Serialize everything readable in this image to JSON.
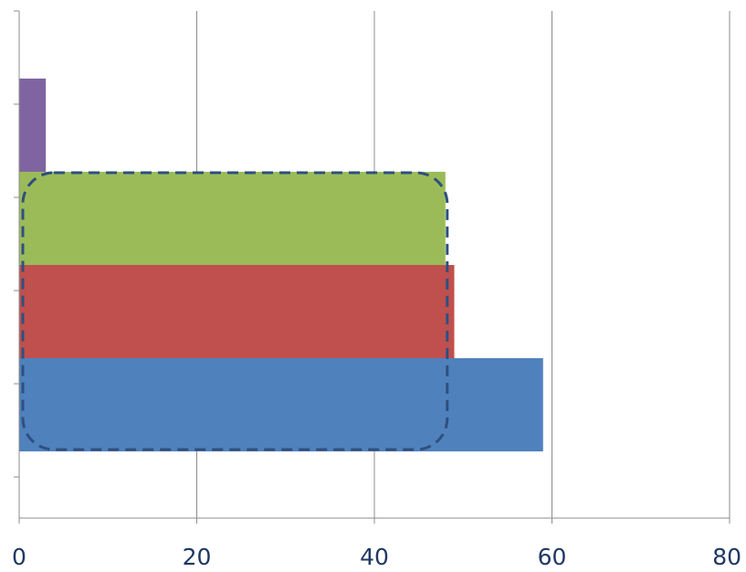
{
  "chart_data": {
    "type": "bar",
    "orientation": "horizontal",
    "title": "",
    "xlabel": "",
    "ylabel": "",
    "xlim": [
      0,
      80
    ],
    "x_ticks": [
      "0",
      "20",
      "40",
      "60",
      "80"
    ],
    "grid": {
      "vertical": true,
      "horizontal": false
    },
    "legend": "none",
    "bars": [
      {
        "value": 59,
        "color": "#4f81bd"
      },
      {
        "value": 49,
        "color": "#c0504d"
      },
      {
        "value": 48,
        "color": "#9bbb59"
      },
      {
        "value": 3,
        "color": "#8064a2"
      }
    ],
    "highlight": {
      "from_bar": 0,
      "to_bar": 2,
      "x_end": 48,
      "style": "dashed-rounded-box",
      "color": "#2f4f7f"
    }
  }
}
